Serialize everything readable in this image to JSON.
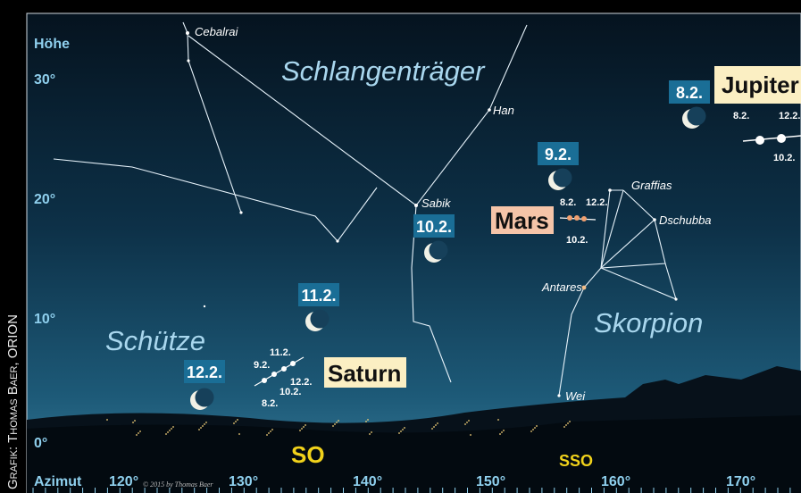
{
  "credit": "Grafik: Thomas Baer, ORION",
  "axis": {
    "altitude_title": "Höhe",
    "altitude_labels": [
      "30°",
      "20°",
      "10°",
      "0°"
    ],
    "azimuth_title": "Azimut",
    "azimuth_labels": [
      "120°",
      "130°",
      "140°",
      "150°",
      "160°",
      "170°"
    ],
    "directions": [
      "SO",
      "SSO"
    ]
  },
  "copyright": "© 2015 by Thomas Baer",
  "constellations": [
    "Schlangenträger",
    "Schütze",
    "Skorpion"
  ],
  "stars": [
    "Cebalrai",
    "Han",
    "Sabik",
    "Graffias",
    "Dschubba",
    "Antares",
    "Wei"
  ],
  "moons": [
    "8.2.",
    "9.2.",
    "10.2.",
    "11.2.",
    "12.2."
  ],
  "planets": [
    {
      "name": "Jupiter",
      "dates": [
        "8.2.",
        "12.2.",
        "10.2."
      ]
    },
    {
      "name": "Mars",
      "dates": [
        "8.2.",
        "12.2.",
        "10.2."
      ]
    },
    {
      "name": "Saturn",
      "dates": [
        "11.2.",
        "9.2.",
        "12.2.",
        "10.2.",
        "8.2."
      ]
    }
  ]
}
